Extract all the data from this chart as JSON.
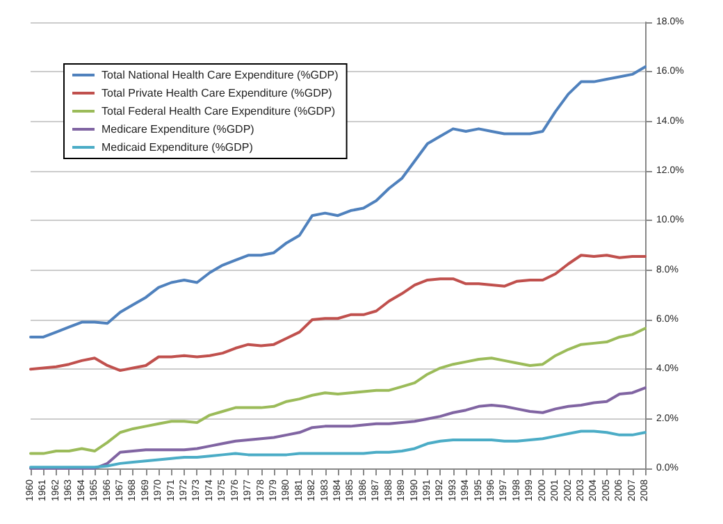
{
  "chart_data": {
    "type": "line",
    "categories": [
      "1960",
      "1961",
      "1962",
      "1963",
      "1964",
      "1965",
      "1966",
      "1967",
      "1968",
      "1969",
      "1970",
      "1971",
      "1972",
      "1973",
      "1974",
      "1975",
      "1976",
      "1977",
      "1978",
      "1979",
      "1980",
      "1981",
      "1982",
      "1983",
      "1984",
      "1985",
      "1986",
      "1987",
      "1988",
      "1989",
      "1990",
      "1991",
      "1992",
      "1993",
      "1994",
      "1995",
      "1996",
      "1997",
      "1998",
      "1999",
      "2000",
      "2001",
      "2002",
      "2003",
      "2004",
      "2005",
      "2006",
      "2007",
      "2008"
    ],
    "series": [
      {
        "name": "Total National Health Care Expenditure (%GDP)",
        "color": "#4f81bd",
        "values": [
          5.3,
          5.3,
          5.5,
          5.7,
          5.9,
          5.9,
          5.85,
          6.3,
          6.6,
          6.9,
          7.3,
          7.5,
          7.6,
          7.5,
          7.9,
          8.2,
          8.4,
          8.6,
          8.6,
          8.7,
          9.1,
          9.4,
          10.2,
          10.3,
          10.2,
          10.4,
          10.5,
          10.8,
          11.3,
          11.7,
          12.4,
          13.1,
          13.4,
          13.7,
          13.6,
          13.7,
          13.6,
          13.5,
          13.5,
          13.5,
          13.6,
          14.4,
          15.1,
          15.6,
          15.6,
          15.7,
          15.8,
          15.9,
          16.2
        ]
      },
      {
        "name": "Total Private Health Care Expenditure (%GDP)",
        "color": "#c0504d",
        "values": [
          4.0,
          4.05,
          4.1,
          4.2,
          4.35,
          4.45,
          4.15,
          3.95,
          4.05,
          4.15,
          4.5,
          4.5,
          4.55,
          4.5,
          4.55,
          4.65,
          4.85,
          5.0,
          4.95,
          5.0,
          5.25,
          5.5,
          6.0,
          6.05,
          6.05,
          6.2,
          6.2,
          6.35,
          6.75,
          7.05,
          7.4,
          7.6,
          7.65,
          7.65,
          7.45,
          7.45,
          7.4,
          7.35,
          7.55,
          7.6,
          7.6,
          7.85,
          8.25,
          8.6,
          8.55,
          8.6,
          8.5,
          8.55,
          8.55
        ]
      },
      {
        "name": "Total Federal Health Care Expenditure (%GDP)",
        "color": "#9bbb59",
        "values": [
          0.6,
          0.6,
          0.7,
          0.7,
          0.8,
          0.7,
          1.05,
          1.45,
          1.6,
          1.7,
          1.8,
          1.9,
          1.9,
          1.85,
          2.15,
          2.3,
          2.45,
          2.45,
          2.45,
          2.5,
          2.7,
          2.8,
          2.95,
          3.05,
          3.0,
          3.05,
          3.1,
          3.15,
          3.15,
          3.3,
          3.45,
          3.8,
          4.05,
          4.2,
          4.3,
          4.4,
          4.45,
          4.35,
          4.25,
          4.15,
          4.2,
          4.55,
          4.8,
          5.0,
          5.05,
          5.1,
          5.3,
          5.4,
          5.65
        ]
      },
      {
        "name": "Medicare Expenditure (%GDP)",
        "color": "#8064a2",
        "values": [
          0,
          0,
          0,
          0,
          0,
          0,
          0.2,
          0.65,
          0.7,
          0.75,
          0.75,
          0.75,
          0.75,
          0.8,
          0.9,
          1.0,
          1.1,
          1.15,
          1.2,
          1.25,
          1.35,
          1.45,
          1.65,
          1.7,
          1.7,
          1.7,
          1.75,
          1.8,
          1.8,
          1.85,
          1.9,
          2.0,
          2.1,
          2.25,
          2.35,
          2.5,
          2.55,
          2.5,
          2.4,
          2.3,
          2.25,
          2.4,
          2.5,
          2.55,
          2.65,
          2.7,
          3.0,
          3.05,
          3.25
        ]
      },
      {
        "name": "Medicaid Expenditure (%GDP)",
        "color": "#4bacc6",
        "values": [
          0.05,
          0.05,
          0.05,
          0.05,
          0.05,
          0.05,
          0.1,
          0.2,
          0.25,
          0.3,
          0.35,
          0.4,
          0.45,
          0.45,
          0.5,
          0.55,
          0.6,
          0.55,
          0.55,
          0.55,
          0.55,
          0.6,
          0.6,
          0.6,
          0.6,
          0.6,
          0.6,
          0.65,
          0.65,
          0.7,
          0.8,
          1.0,
          1.1,
          1.15,
          1.15,
          1.15,
          1.15,
          1.1,
          1.1,
          1.15,
          1.2,
          1.3,
          1.4,
          1.5,
          1.5,
          1.45,
          1.35,
          1.35,
          1.45
        ]
      }
    ],
    "ylim": [
      0,
      18
    ],
    "yticks": [
      {
        "value": 0,
        "label": "0.0%"
      },
      {
        "value": 2,
        "label": "2.0%"
      },
      {
        "value": 4,
        "label": "4.0%"
      },
      {
        "value": 6,
        "label": "6.0%"
      },
      {
        "value": 8,
        "label": "8.0%"
      },
      {
        "value": 10,
        "label": "10.0%"
      },
      {
        "value": 12,
        "label": "12.0%"
      },
      {
        "value": 14,
        "label": "14.0%"
      },
      {
        "value": 16,
        "label": "16.0%"
      },
      {
        "value": 18,
        "label": "18.0%"
      }
    ],
    "grid": "y",
    "legend": "top left",
    "marker": "none",
    "line_style": "solid"
  }
}
